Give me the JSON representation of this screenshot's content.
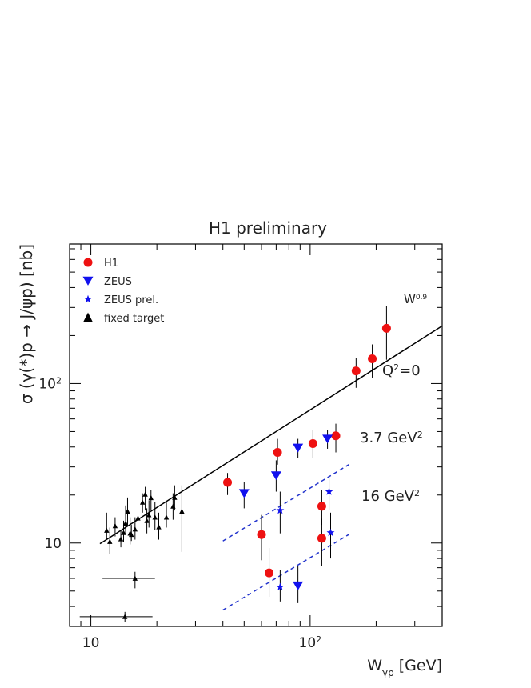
{
  "chart_data": {
    "type": "scatter",
    "title": "H1 preliminary",
    "xlabel": "W",
    "xlabel_sub": "γp",
    "xlabel_unit": "[GeV]",
    "ylabel": "σ (γ(*)p → J/ψp)  [nb]",
    "x_scale": "log",
    "y_scale": "log",
    "xlim": [
      8,
      400
    ],
    "ylim": [
      3,
      750
    ],
    "x_ticks": [
      {
        "value": 10,
        "label": "10"
      },
      {
        "value": 100,
        "label": "10",
        "sup": "2"
      }
    ],
    "y_ticks": [
      {
        "value": 10,
        "label": "10"
      },
      {
        "value": 100,
        "label": "10",
        "sup": "2"
      }
    ],
    "legend_position": "top-left",
    "legend": [
      {
        "label": "H1",
        "marker": "circle",
        "color": "#ee1111"
      },
      {
        "label": "ZEUS",
        "marker": "triangle-down",
        "color": "#1111ee"
      },
      {
        "label": "ZEUS prel.",
        "marker": "star",
        "color": "#1111ee"
      },
      {
        "label": "fixed target",
        "marker": "triangle-up",
        "color": "#000000"
      }
    ],
    "annotations": [
      {
        "text": "W",
        "sup": "0.9"
      },
      {
        "text": "Q",
        "sup": "2",
        "tail": "=0"
      },
      {
        "text": "3.7 GeV",
        "sup": "2"
      },
      {
        "text": "16 GeV",
        "sup": "2"
      }
    ],
    "fit_lines": [
      {
        "style": "solid",
        "color": "#000000",
        "x": [
          11,
          400
        ],
        "y": [
          9.9,
          230
        ]
      },
      {
        "style": "dashed",
        "color": "#2233cc",
        "x": [
          40,
          150
        ],
        "y": [
          10.3,
          31
        ]
      },
      {
        "style": "dashed",
        "color": "#2233cc",
        "x": [
          40,
          150
        ],
        "y": [
          3.8,
          11.3
        ]
      }
    ],
    "series": [
      {
        "name": "H1",
        "marker": "circle",
        "color": "#ee1111",
        "points": [
          {
            "x": 42,
            "y": 24,
            "ylo": 20,
            "yhi": 27.5
          },
          {
            "x": 71,
            "y": 37,
            "ylo": 31,
            "yhi": 45
          },
          {
            "x": 103,
            "y": 42,
            "ylo": 34,
            "yhi": 51
          },
          {
            "x": 131,
            "y": 47,
            "ylo": 37,
            "yhi": 56
          },
          {
            "x": 162,
            "y": 120,
            "ylo": 94,
            "yhi": 145
          },
          {
            "x": 192,
            "y": 143,
            "ylo": 109,
            "yhi": 176
          },
          {
            "x": 223,
            "y": 222,
            "ylo": 141,
            "yhi": 305
          },
          {
            "x": 60,
            "y": 11.3,
            "ylo": 7.8,
            "yhi": 15
          },
          {
            "x": 65,
            "y": 6.5,
            "ylo": 4.6,
            "yhi": 9.3
          },
          {
            "x": 113,
            "y": 17,
            "ylo": 13,
            "yhi": 21.5
          },
          {
            "x": 113,
            "y": 10.7,
            "ylo": 7.2,
            "yhi": 14.2
          }
        ]
      },
      {
        "name": "ZEUS",
        "marker": "triangle-down",
        "color": "#1111ee",
        "points": [
          {
            "x": 50,
            "y": 20.5,
            "ylo": 16.5,
            "yhi": 24
          },
          {
            "x": 70,
            "y": 26.5,
            "ylo": 21,
            "yhi": 33
          },
          {
            "x": 88,
            "y": 39.5,
            "ylo": 34,
            "yhi": 45
          },
          {
            "x": 120,
            "y": 45,
            "ylo": 39,
            "yhi": 51
          },
          {
            "x": 88,
            "y": 5.4,
            "ylo": 4.2,
            "yhi": 7.2
          }
        ]
      },
      {
        "name": "ZEUS prel.",
        "marker": "star",
        "color": "#1111ee",
        "points": [
          {
            "x": 73,
            "y": 16,
            "ylo": 11.5,
            "yhi": 21
          },
          {
            "x": 122,
            "y": 21,
            "ylo": 16,
            "yhi": 26
          },
          {
            "x": 73,
            "y": 5.3,
            "ylo": 4.3,
            "yhi": 6.8
          },
          {
            "x": 124,
            "y": 11.6,
            "ylo": 8,
            "yhi": 15.5
          }
        ]
      },
      {
        "name": "fixed target",
        "marker": "triangle-up",
        "color": "#000000",
        "points": [
          {
            "x": 11.8,
            "y": 12,
            "ylo": 10.5,
            "yhi": 15.5
          },
          {
            "x": 12.2,
            "y": 10.2,
            "ylo": 8.5,
            "yhi": 12.5
          },
          {
            "x": 12.9,
            "y": 12.8,
            "ylo": 11,
            "yhi": 14.5
          },
          {
            "x": 13.7,
            "y": 10.6,
            "ylo": 9.4,
            "yhi": 12
          },
          {
            "x": 14.1,
            "y": 11.6,
            "ylo": 10.1,
            "yhi": 13.8
          },
          {
            "x": 14.4,
            "y": 13.3,
            "ylo": 11.5,
            "yhi": 17.2
          },
          {
            "x": 14.7,
            "y": 15.8,
            "ylo": 13,
            "yhi": 19.3
          },
          {
            "x": 15.1,
            "y": 11.5,
            "ylo": 9.8,
            "yhi": 14.5
          },
          {
            "x": 15.3,
            "y": 11.3,
            "ylo": 10.3,
            "yhi": 13
          },
          {
            "x": 15.9,
            "y": 12.2,
            "ylo": 10.5,
            "yhi": 14.5
          },
          {
            "x": 16.4,
            "y": 14.3,
            "ylo": 12.5,
            "yhi": 16.5
          },
          {
            "x": 17.2,
            "y": 18,
            "ylo": 15.5,
            "yhi": 20.5
          },
          {
            "x": 17.7,
            "y": 20.2,
            "ylo": 16,
            "yhi": 22.5
          },
          {
            "x": 18.0,
            "y": 13.8,
            "ylo": 11.5,
            "yhi": 16.5
          },
          {
            "x": 18.4,
            "y": 15,
            "ylo": 12.5,
            "yhi": 18.5
          },
          {
            "x": 18.8,
            "y": 19.2,
            "ylo": 16,
            "yhi": 21.5
          },
          {
            "x": 19.6,
            "y": 14.5,
            "ylo": 12,
            "yhi": 18
          },
          {
            "x": 20.4,
            "y": 12.6,
            "ylo": 10.5,
            "yhi": 15.5
          },
          {
            "x": 22.1,
            "y": 14.5,
            "ylo": 12.5,
            "yhi": 18
          },
          {
            "x": 23.7,
            "y": 17,
            "ylo": 14,
            "yhi": 20.5
          },
          {
            "x": 24.1,
            "y": 19.3,
            "ylo": 16,
            "yhi": 23
          },
          {
            "x": 26.0,
            "y": 15.8,
            "ylo": 8.8,
            "yhi": 23
          },
          {
            "x": 15.9,
            "y": 6.0,
            "ylo": 5.2,
            "yhi": 6.6,
            "xlo": 11.3,
            "xhi": 19.6
          },
          {
            "x": 14.3,
            "y": 3.45,
            "ylo": 3.2,
            "yhi": 3.7,
            "xlo": 8.9,
            "xhi": 19.1
          }
        ]
      }
    ]
  }
}
